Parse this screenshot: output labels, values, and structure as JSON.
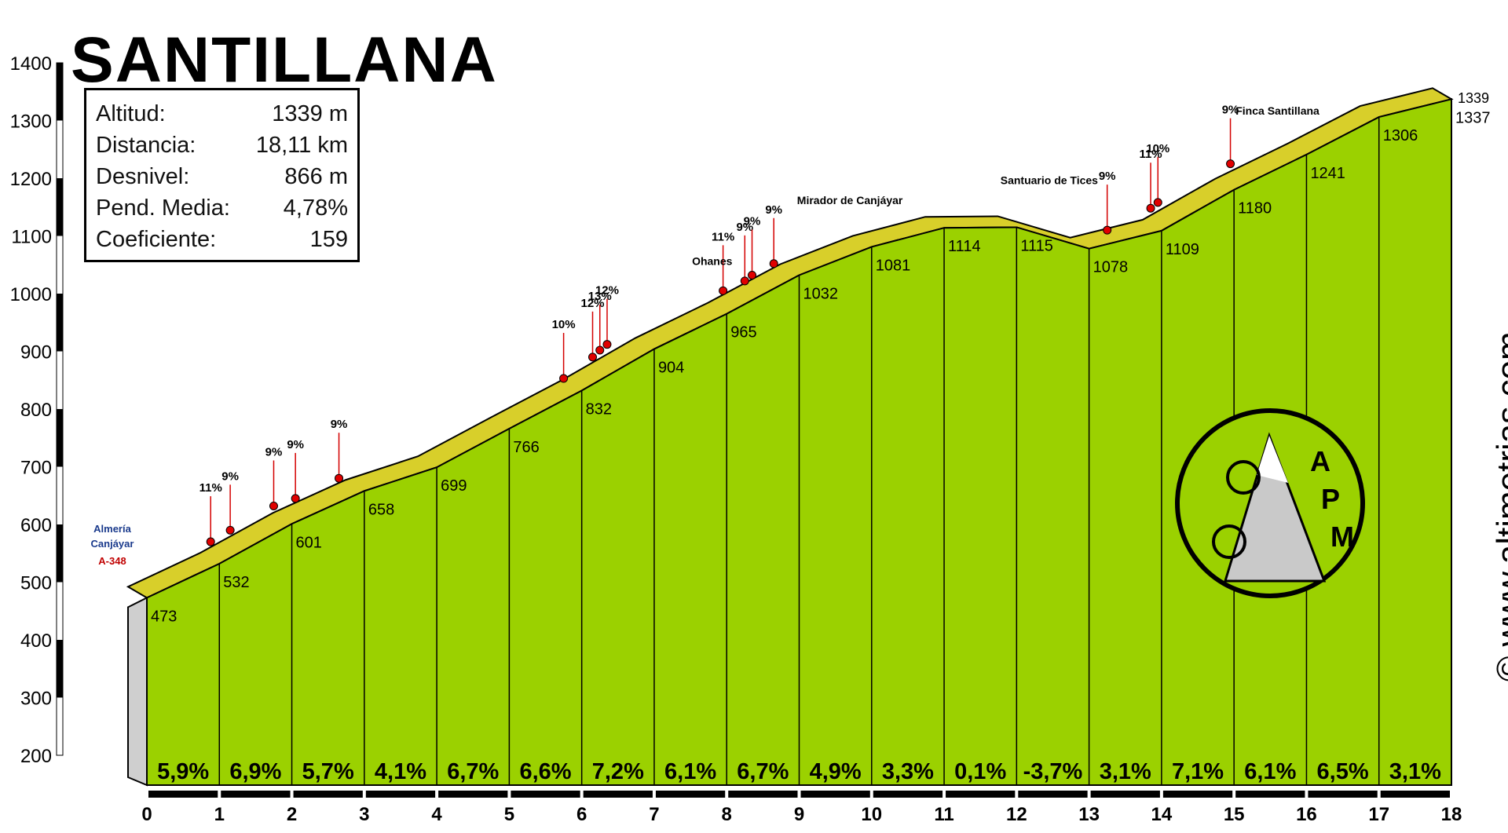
{
  "title": "SANTILLANA",
  "website": "© www.altimetrias.com",
  "logo_text": "APM",
  "info": {
    "rows": [
      {
        "label": "Altitud:",
        "value": "1339 m"
      },
      {
        "label": "Distancia:",
        "value": "18,11 km"
      },
      {
        "label": "Desnivel:",
        "value": "866 m"
      },
      {
        "label": "Pend. Media:",
        "value": "4,78%"
      },
      {
        "label": "Coeficiente:",
        "value": "159"
      }
    ]
  },
  "chart_data": {
    "type": "area",
    "xlabel": "",
    "ylabel": "",
    "xlim": [
      0,
      18
    ],
    "ylim": [
      200,
      1400
    ],
    "x_ticks": [
      0,
      1,
      2,
      3,
      4,
      5,
      6,
      7,
      8,
      9,
      10,
      11,
      12,
      13,
      14,
      15,
      16,
      17,
      18
    ],
    "y_ticks": [
      200,
      300,
      400,
      500,
      600,
      700,
      800,
      900,
      1000,
      1100,
      1200,
      1300,
      1400
    ],
    "profile_km": [
      0,
      1,
      2,
      3,
      4,
      5,
      6,
      7,
      8,
      9,
      10,
      11,
      12,
      13,
      14,
      15,
      16,
      17,
      18
    ],
    "profile_alt": [
      473,
      532,
      601,
      658,
      699,
      766,
      832,
      904,
      965,
      1032,
      1081,
      1114,
      1115,
      1078,
      1109,
      1180,
      1241,
      1306,
      1337
    ],
    "km_labels": [
      "473",
      "532",
      "601",
      "658",
      "699",
      "766",
      "832",
      "904",
      "965",
      "1032",
      "1081",
      "1114",
      "1115",
      "1078",
      "1109",
      "1180",
      "1241",
      "1306",
      "1337"
    ],
    "end_label": "1339",
    "gradients": [
      "5,9%",
      "6,9%",
      "5,7%",
      "4,1%",
      "6,7%",
      "6,6%",
      "7,2%",
      "6,1%",
      "6,7%",
      "4,9%",
      "3,3%",
      "0,1%",
      "-3,7%",
      "3,1%",
      "7,1%",
      "6,1%",
      "6,5%",
      "3,1%"
    ],
    "pct_markers": [
      {
        "km": 0.88,
        "alt": 570,
        "label": "11%"
      },
      {
        "km": 1.15,
        "alt": 590,
        "label": "9%"
      },
      {
        "km": 1.75,
        "alt": 632,
        "label": "9%"
      },
      {
        "km": 2.05,
        "alt": 645,
        "label": "9%"
      },
      {
        "km": 2.65,
        "alt": 680,
        "label": "9%"
      },
      {
        "km": 5.75,
        "alt": 853,
        "label": "10%"
      },
      {
        "km": 6.15,
        "alt": 890,
        "label": "12%"
      },
      {
        "km": 6.25,
        "alt": 902,
        "label": "13%"
      },
      {
        "km": 6.35,
        "alt": 912,
        "label": "12%"
      },
      {
        "km": 7.95,
        "alt": 1005,
        "label": "11%"
      },
      {
        "km": 8.25,
        "alt": 1022,
        "label": "9%"
      },
      {
        "km": 8.35,
        "alt": 1032,
        "label": "9%"
      },
      {
        "km": 8.65,
        "alt": 1052,
        "label": "9%"
      },
      {
        "km": 13.25,
        "alt": 1110,
        "label": "9%"
      },
      {
        "km": 13.85,
        "alt": 1148,
        "label": "11%"
      },
      {
        "km": 13.95,
        "alt": 1158,
        "label": "10%"
      },
      {
        "km": 14.95,
        "alt": 1225,
        "label": "9%"
      }
    ],
    "place_labels": [
      {
        "km": 9.7,
        "alt": 1155,
        "label": "Mirador de Canjáyar"
      },
      {
        "km": 12.45,
        "alt": 1190,
        "label": "Santuario de Tices"
      },
      {
        "km": 15.6,
        "alt": 1310,
        "label": "Finca Santillana"
      },
      {
        "km": 7.8,
        "alt": 1050,
        "label": "Ohanes"
      }
    ],
    "start_signs": [
      "Almería",
      "Canjáyar",
      "A-348"
    ]
  }
}
